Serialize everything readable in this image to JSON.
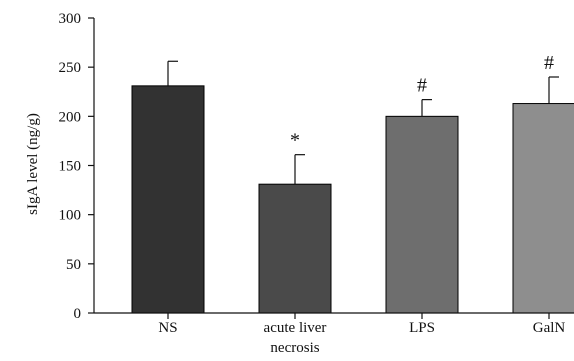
{
  "chart_data": {
    "type": "bar",
    "title": "",
    "xlabel": "",
    "ylabel": "sIgA level (ng/g)",
    "ylim": [
      0,
      300
    ],
    "yticks": [
      0,
      50,
      100,
      150,
      200,
      250,
      300
    ],
    "grid": false,
    "categories": [
      {
        "lines": [
          "NS"
        ]
      },
      {
        "lines": [
          "acute liver",
          "necrosis"
        ]
      },
      {
        "lines": [
          "LPS"
        ]
      },
      {
        "lines": [
          "GalN"
        ]
      }
    ],
    "values": [
      231,
      131,
      200,
      213
    ],
    "error_upper": [
      25,
      30,
      17,
      27
    ],
    "annotations": [
      "",
      "*",
      "#",
      "#"
    ],
    "bar_colors": [
      "#323232",
      "#4a4a4a",
      "#6e6e6e",
      "#8e8e8e"
    ]
  }
}
